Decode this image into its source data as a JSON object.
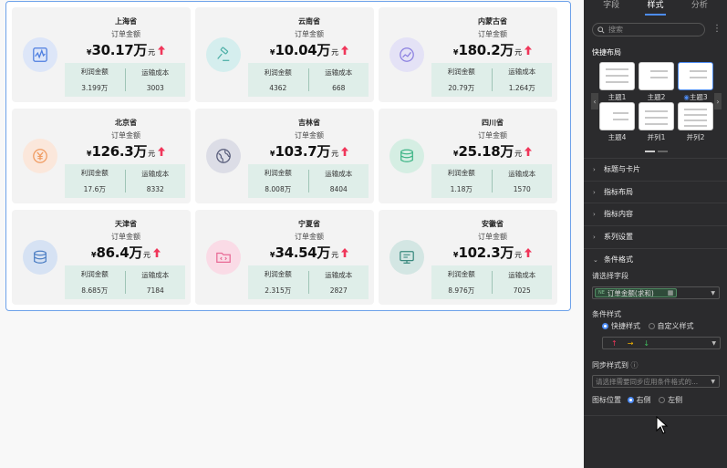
{
  "cards": [
    {
      "province": "上海省",
      "label": "订单金额",
      "currency": "¥",
      "amount": "30.17万",
      "unit": "元",
      "m1_label": "利润金额",
      "m1_value": "3.199万",
      "m2_label": "运输成本",
      "m2_value": "3003",
      "icon": "chart-line-icon",
      "bg": "#dde6f8",
      "fg": "#4d7ee0"
    },
    {
      "province": "云南省",
      "label": "订单金额",
      "currency": "¥",
      "amount": "10.04万",
      "unit": "元",
      "m1_label": "利润金额",
      "m1_value": "4362",
      "m2_label": "运输成本",
      "m2_value": "668",
      "icon": "gavel-icon",
      "bg": "#d5eeee",
      "fg": "#4fb0a8"
    },
    {
      "province": "内蒙古省",
      "label": "订单金额",
      "currency": "¥",
      "amount": "180.2万",
      "unit": "元",
      "m1_label": "利润金额",
      "m1_value": "20.79万",
      "m2_label": "运输成本",
      "m2_value": "1.264万",
      "icon": "trend-icon",
      "bg": "#e4e2f6",
      "fg": "#8a7fe0"
    },
    {
      "province": "北京省",
      "label": "订单金额",
      "currency": "¥",
      "amount": "126.3万",
      "unit": "元",
      "m1_label": "利润金额",
      "m1_value": "17.6万",
      "m2_label": "运输成本",
      "m2_value": "8332",
      "icon": "yuan-icon",
      "bg": "#fbe7db",
      "fg": "#f09a5f"
    },
    {
      "province": "吉林省",
      "label": "订单金额",
      "currency": "¥",
      "amount": "103.7万",
      "unit": "元",
      "m1_label": "利润金额",
      "m1_value": "8.008万",
      "m2_label": "运输成本",
      "m2_value": "8404",
      "icon": "globe-icon",
      "bg": "#dcdde6",
      "fg": "#555a78"
    },
    {
      "province": "四川省",
      "label": "订单金额",
      "currency": "¥",
      "amount": "25.18万",
      "unit": "元",
      "m1_label": "利润金额",
      "m1_value": "1.18万",
      "m2_label": "运输成本",
      "m2_value": "1570",
      "icon": "database-icon",
      "bg": "#d5eee3",
      "fg": "#3fb587"
    },
    {
      "province": "天津省",
      "label": "订单金额",
      "currency": "¥",
      "amount": "86.4万",
      "unit": "元",
      "m1_label": "利润金额",
      "m1_value": "8.685万",
      "m2_label": "运输成本",
      "m2_value": "7184",
      "icon": "database-icon",
      "bg": "#d6e2f3",
      "fg": "#4d7fc4"
    },
    {
      "province": "宁夏省",
      "label": "订单金额",
      "currency": "¥",
      "amount": "34.54万",
      "unit": "元",
      "m1_label": "利润金额",
      "m1_value": "2.315万",
      "m2_label": "运输成本",
      "m2_value": "2827",
      "icon": "code-folder-icon",
      "bg": "#fadbe6",
      "fg": "#e86a95"
    },
    {
      "province": "安徽省",
      "label": "订单金额",
      "currency": "¥",
      "amount": "102.3万",
      "unit": "元",
      "m1_label": "利润金额",
      "m1_value": "8.976万",
      "m2_label": "运输成本",
      "m2_value": "7025",
      "icon": "monitor-icon",
      "bg": "#d3e6e3",
      "fg": "#3b8a7f"
    }
  ],
  "colors": {
    "up_arrow": "#f0365a",
    "accent": "#4d8cf5",
    "sub_bg": "#dfeee9"
  },
  "panel": {
    "tabs": [
      "字段",
      "样式",
      "分析"
    ],
    "search_placeholder": "搜索",
    "quick_layout": "快捷布局",
    "themes": [
      "主题1",
      "主题2",
      "主题3",
      "主题4",
      "并列1",
      "并列2"
    ],
    "sections": [
      "标题与卡片",
      "指标布局",
      "指标内容",
      "系列设置",
      "条件格式"
    ],
    "choose_field": "请选择字段",
    "field_tag": "订单金额(求和)",
    "field_tag_prefix": "NE",
    "cond_style": "条件样式",
    "quick_style": "快捷样式",
    "custom_style": "自定义样式",
    "sync_label": "同步样式到",
    "sync_placeholder": "请选择需要同步应用条件格式的...",
    "icon_pos": "图标位置",
    "right": "右侧",
    "left": "左侧"
  }
}
